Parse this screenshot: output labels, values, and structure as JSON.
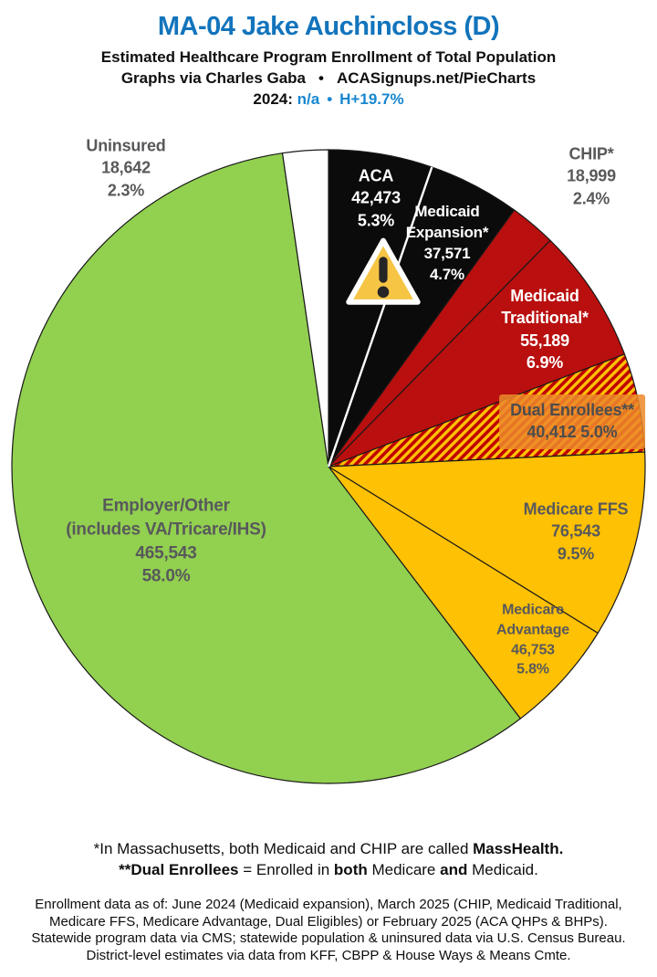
{
  "header": {
    "title": "MA-04 Jake Auchincloss (D)",
    "subtitle": "Estimated Healthcare Program Enrollment of Total Population",
    "credit": "Graphs via Charles Gaba",
    "bullet": "•",
    "site": "ACASignups.net/PieCharts",
    "year_label": "2024:",
    "year_value": "n/a",
    "partisan_lean": "H+19.7%"
  },
  "colors": {
    "title_blue": "#1274BC",
    "accent_blue": "#1787D0",
    "black_slice": "#0B0B0B",
    "red_slice": "#B90F0E",
    "gold_slice": "#FFC103",
    "green_slice": "#92D050",
    "white_slice": "#FFFFFF",
    "gray_label": "#58595B",
    "dual_label_bg": "#EC892B",
    "warning_yellow": "#F6C544"
  },
  "chart_data": {
    "type": "pie",
    "title": "Estimated Healthcare Program Enrollment of Total Population",
    "total": 802125,
    "start_angle_deg": 0,
    "direction": "clockwise",
    "white_divider_after": "aca",
    "legend_position": "labels-on-slices",
    "slices": [
      {
        "id": "aca",
        "name": "ACA",
        "value": 42473,
        "percent": "5.3%",
        "fill": "#0B0B0B",
        "lines": [
          "ACA",
          "42,473",
          "5.3%"
        ]
      },
      {
        "id": "medicaid-expansion",
        "name": "Medicaid Expansion*",
        "value": 37571,
        "percent": "4.7%",
        "fill": "#0B0B0B",
        "lines": [
          "Medicaid",
          "Expansion*",
          "37,571",
          "4.7%"
        ]
      },
      {
        "id": "chip",
        "name": "CHIP*",
        "value": 18999,
        "percent": "2.4%",
        "fill": "#B90F0E",
        "lines": [
          "CHIP*",
          "18,999",
          "2.4%"
        ]
      },
      {
        "id": "medicaid-traditional",
        "name": "Medicaid Traditional*",
        "value": 55189,
        "percent": "6.9%",
        "fill": "#B90F0E",
        "lines": [
          "Medicaid",
          "Traditional*",
          "55,189",
          "6.9%"
        ]
      },
      {
        "id": "dual-enrollees",
        "name": "Dual Enrollees**",
        "value": 40412,
        "percent": "5.0%",
        "fill": "hatch-red-gold",
        "lines": [
          "Dual Enrollees**",
          "40,412 5.0%"
        ]
      },
      {
        "id": "medicare-ffs",
        "name": "Medicare FFS",
        "value": 76543,
        "percent": "9.5%",
        "fill": "#FFC103",
        "lines": [
          "Medicare FFS",
          "76,543",
          "9.5%"
        ]
      },
      {
        "id": "medicare-advantage",
        "name": "Medicare Advantage",
        "value": 46753,
        "percent": "5.8%",
        "fill": "#FFC103",
        "lines": [
          "Medicare",
          "Advantage",
          "46,753",
          "5.8%"
        ]
      },
      {
        "id": "employer-other",
        "name": "Employer/Other (includes VA/Tricare/IHS)",
        "value": 465543,
        "percent": "58.0%",
        "fill": "#92D050",
        "lines": [
          "Employer/Other",
          "(includes VA/Tricare/IHS)",
          "465,543",
          "58.0%"
        ]
      },
      {
        "id": "uninsured",
        "name": "Uninsured",
        "value": 18642,
        "percent": "2.3%",
        "fill": "#FFFFFF",
        "lines": [
          "Uninsured",
          "18,642",
          "2.3%"
        ]
      }
    ]
  },
  "footnotes": {
    "note1_prefix": "*In Massachusetts, both Medicaid and CHIP are called ",
    "note1_bold": "MassHealth.",
    "note2_bold1": "**Dual Enrollees",
    "note2_mid1": " = Enrolled in ",
    "note2_bold2": "both",
    "note2_mid2": " Medicare ",
    "note2_bold3": "and",
    "note2_suffix": " Medicaid.",
    "source_lines": [
      "Enrollment data as of: June 2024 (Medicaid expansion), March 2025 (CHIP, Medicaid Traditional,",
      "Medicare FFS, Medicare Advantage, Dual Eligibles) or February 2025 (ACA QHPs & BHPs).",
      "Statewide program data via CMS; statewide population & uninsured data via U.S. Census Bureau.",
      "District-level estimates via data from KFF, CBPP & House Ways & Means Cmte."
    ]
  }
}
